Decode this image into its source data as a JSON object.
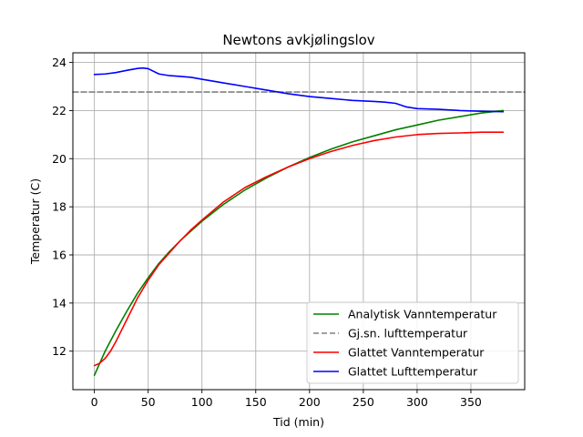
{
  "chart_data": {
    "type": "line",
    "title": "Newtons avkjølingslov",
    "xlabel": "Tid (min)",
    "ylabel": "Temperatur (C)",
    "xlim": [
      -20,
      400
    ],
    "ylim": [
      10.4,
      24.4
    ],
    "xticks": [
      0,
      50,
      100,
      150,
      200,
      250,
      300,
      350
    ],
    "yticks": [
      12,
      14,
      16,
      18,
      20,
      22,
      24
    ],
    "grid": true,
    "legend_position": "lower-right",
    "series": [
      {
        "name": "Analytisk Vanntemperatur",
        "color": "#008000",
        "dash": "solid",
        "x": [
          0,
          10,
          20,
          30,
          40,
          50,
          60,
          70,
          80,
          90,
          100,
          120,
          140,
          160,
          180,
          200,
          220,
          240,
          260,
          280,
          300,
          320,
          340,
          360,
          380
        ],
        "y": [
          11.0,
          12.0,
          12.85,
          13.65,
          14.4,
          15.05,
          15.65,
          16.15,
          16.6,
          17.0,
          17.4,
          18.1,
          18.7,
          19.2,
          19.65,
          20.05,
          20.4,
          20.7,
          20.95,
          21.2,
          21.4,
          21.6,
          21.75,
          21.9,
          22.0
        ]
      },
      {
        "name": "Gj.sn. lufttemperatur",
        "color": "#808080",
        "dash": "dashed",
        "x": [
          -20,
          400
        ],
        "y": [
          22.77,
          22.77
        ]
      },
      {
        "name": "Glattet Vanntemperatur",
        "color": "#ff0000",
        "dash": "solid",
        "x": [
          0,
          5,
          10,
          15,
          20,
          30,
          40,
          50,
          60,
          70,
          80,
          90,
          100,
          120,
          140,
          160,
          180,
          200,
          220,
          240,
          260,
          280,
          300,
          320,
          340,
          360,
          380
        ],
        "y": [
          11.4,
          11.5,
          11.7,
          12.0,
          12.4,
          13.3,
          14.2,
          14.95,
          15.6,
          16.1,
          16.6,
          17.05,
          17.45,
          18.2,
          18.8,
          19.25,
          19.65,
          20.0,
          20.3,
          20.55,
          20.75,
          20.9,
          21.0,
          21.05,
          21.07,
          21.1,
          21.1
        ]
      },
      {
        "name": "Glattet Lufttemperatur",
        "color": "#0000ff",
        "dash": "solid",
        "x": [
          0,
          10,
          20,
          30,
          40,
          45,
          50,
          60,
          70,
          80,
          90,
          100,
          120,
          140,
          160,
          180,
          200,
          220,
          240,
          260,
          270,
          280,
          290,
          300,
          320,
          340,
          360,
          380
        ],
        "y": [
          23.5,
          23.52,
          23.58,
          23.67,
          23.75,
          23.77,
          23.74,
          23.52,
          23.45,
          23.42,
          23.38,
          23.3,
          23.15,
          23.0,
          22.85,
          22.7,
          22.58,
          22.5,
          22.42,
          22.38,
          22.35,
          22.3,
          22.15,
          22.08,
          22.05,
          22.0,
          21.97,
          21.95
        ]
      }
    ]
  }
}
